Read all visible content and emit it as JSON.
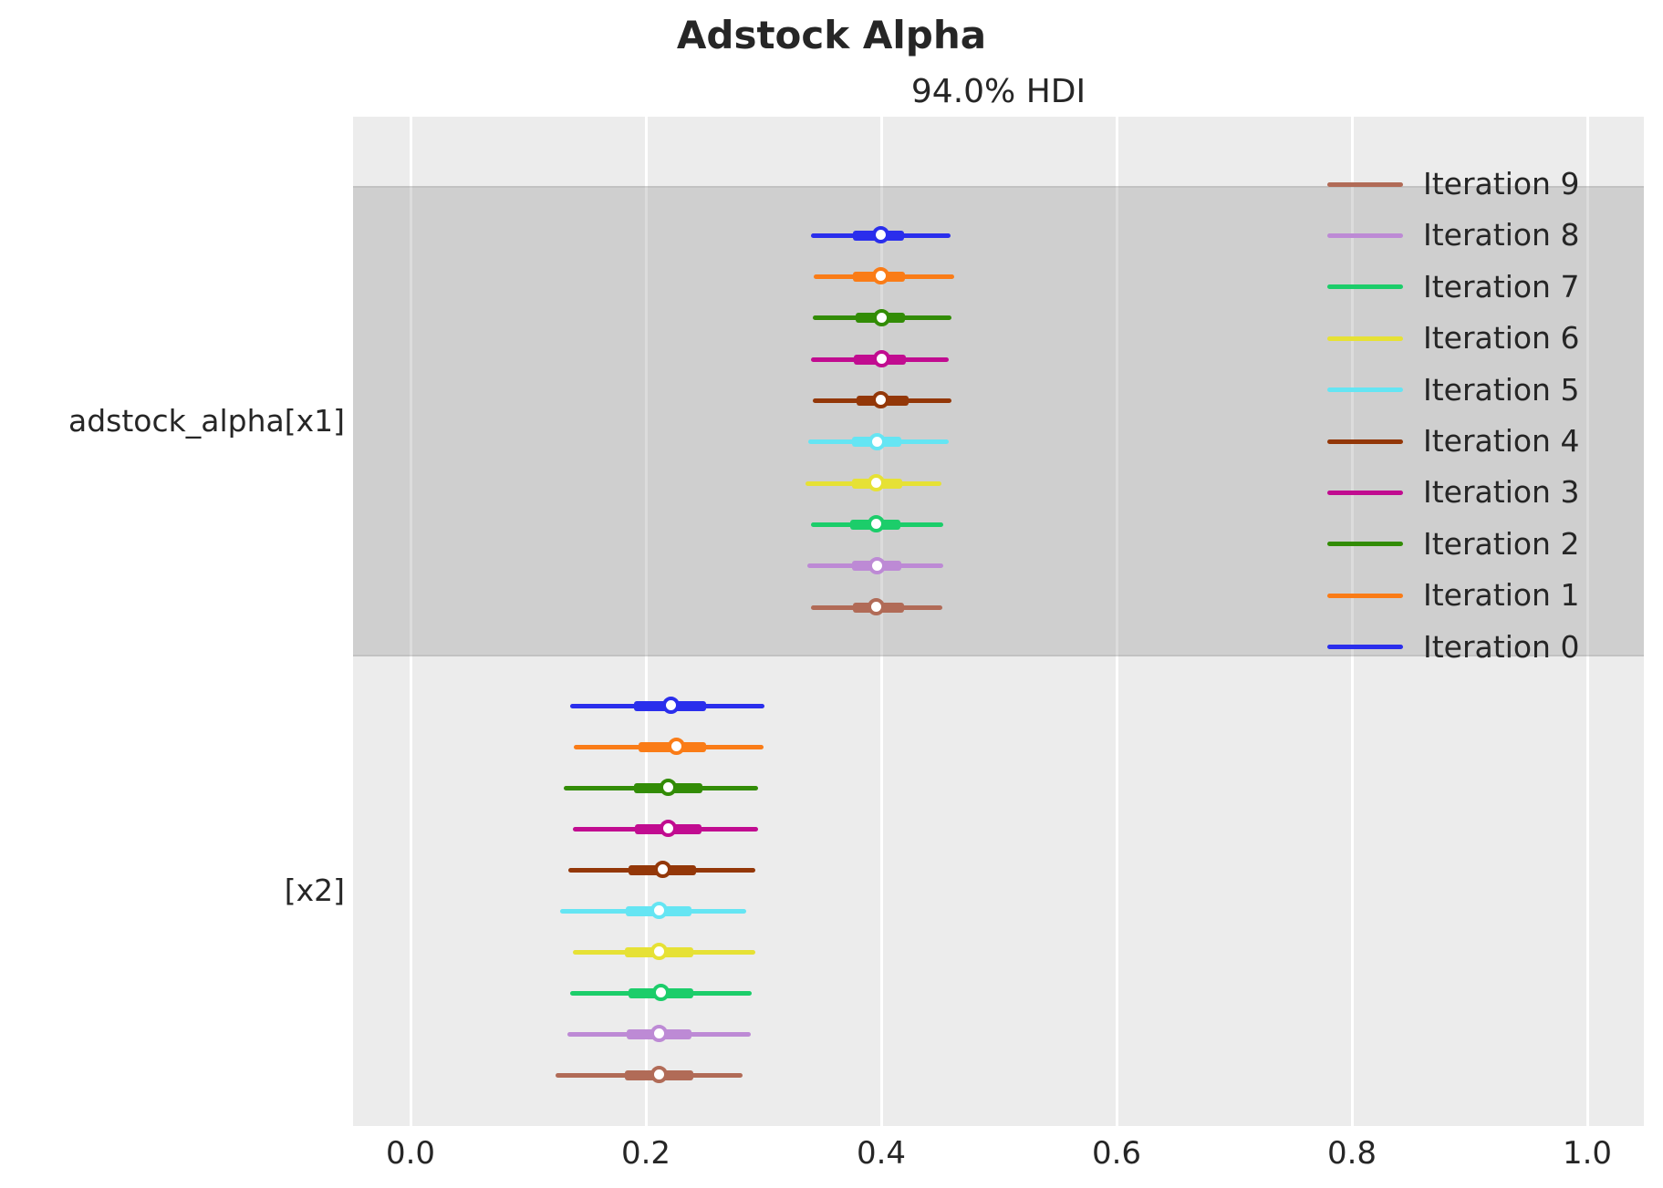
{
  "title": "Adstock Alpha",
  "subtitle": "94.0% HDI",
  "colors": {
    "figure_bg": "#ffffff",
    "plot_bg": "#ececec",
    "band_overlay": "#d2d2d2",
    "grid": "#ffffff",
    "text": "#262626"
  },
  "chart_data": {
    "type": "forest",
    "title": "Adstock Alpha",
    "subtitle": "94.0% HDI",
    "interval_label": "94.0% HDI",
    "xlabel": "",
    "xlim": [
      -0.05,
      1.05
    ],
    "x_ticks": [
      0.0,
      0.2,
      0.4,
      0.6,
      0.8,
      1.0
    ],
    "x_tick_labels": [
      "0.0",
      "0.2",
      "0.4",
      "0.6",
      "0.8",
      "1.0"
    ],
    "grid": true,
    "legend_position": "upper right inside",
    "groups": [
      {
        "label": "adstock_alpha[x1]",
        "shaded": true,
        "rows": [
          {
            "series": "Iteration 0",
            "color": "#2a2eec",
            "hdi": [
              0.34,
              0.459
            ],
            "iqr": [
              0.376,
              0.419
            ],
            "median": 0.4
          },
          {
            "series": "Iteration 1",
            "color": "#fa7c17",
            "hdi": [
              0.343,
              0.462
            ],
            "iqr": [
              0.376,
              0.42
            ],
            "median": 0.4
          },
          {
            "series": "Iteration 2",
            "color": "#328c06",
            "hdi": [
              0.342,
              0.46
            ],
            "iqr": [
              0.378,
              0.42
            ],
            "median": 0.401
          },
          {
            "series": "Iteration 3",
            "color": "#c10c90",
            "hdi": [
              0.34,
              0.457
            ],
            "iqr": [
              0.377,
              0.421
            ],
            "median": 0.401
          },
          {
            "series": "Iteration 4",
            "color": "#933708",
            "hdi": [
              0.342,
              0.46
            ],
            "iqr": [
              0.379,
              0.423
            ],
            "median": 0.4
          },
          {
            "series": "Iteration 5",
            "color": "#65e5f3",
            "hdi": [
              0.338,
              0.457
            ],
            "iqr": [
              0.375,
              0.417
            ],
            "median": 0.397
          },
          {
            "series": "Iteration 6",
            "color": "#e6e135",
            "hdi": [
              0.336,
              0.451
            ],
            "iqr": [
              0.375,
              0.418
            ],
            "median": 0.396
          },
          {
            "series": "Iteration 7",
            "color": "#1ccd6a",
            "hdi": [
              0.34,
              0.453
            ],
            "iqr": [
              0.374,
              0.416
            ],
            "median": 0.396
          },
          {
            "series": "Iteration 8",
            "color": "#bd8ad5",
            "hdi": [
              0.337,
              0.453
            ],
            "iqr": [
              0.375,
              0.417
            ],
            "median": 0.397
          },
          {
            "series": "Iteration 9",
            "color": "#b16b57",
            "hdi": [
              0.34,
              0.452
            ],
            "iqr": [
              0.376,
              0.419
            ],
            "median": 0.396
          }
        ]
      },
      {
        "label": "[x2]",
        "shaded": false,
        "rows": [
          {
            "series": "Iteration 0",
            "color": "#2a2eec",
            "hdi": [
              0.136,
              0.301
            ],
            "iqr": [
              0.19,
              0.251
            ],
            "median": 0.222
          },
          {
            "series": "Iteration 1",
            "color": "#fa7c17",
            "hdi": [
              0.139,
              0.3
            ],
            "iqr": [
              0.194,
              0.251
            ],
            "median": 0.226
          },
          {
            "series": "Iteration 2",
            "color": "#328c06",
            "hdi": [
              0.13,
              0.295
            ],
            "iqr": [
              0.19,
              0.248
            ],
            "median": 0.219
          },
          {
            "series": "Iteration 3",
            "color": "#c10c90",
            "hdi": [
              0.138,
              0.295
            ],
            "iqr": [
              0.191,
              0.247
            ],
            "median": 0.219
          },
          {
            "series": "Iteration 4",
            "color": "#933708",
            "hdi": [
              0.134,
              0.293
            ],
            "iqr": [
              0.185,
              0.243
            ],
            "median": 0.215
          },
          {
            "series": "Iteration 5",
            "color": "#65e5f3",
            "hdi": [
              0.127,
              0.285
            ],
            "iqr": [
              0.183,
              0.239
            ],
            "median": 0.212
          },
          {
            "series": "Iteration 6",
            "color": "#e6e135",
            "hdi": [
              0.138,
              0.293
            ],
            "iqr": [
              0.182,
              0.24
            ],
            "median": 0.212
          },
          {
            "series": "Iteration 7",
            "color": "#1ccd6a",
            "hdi": [
              0.136,
              0.29
            ],
            "iqr": [
              0.185,
              0.24
            ],
            "median": 0.213
          },
          {
            "series": "Iteration 8",
            "color": "#bd8ad5",
            "hdi": [
              0.133,
              0.289
            ],
            "iqr": [
              0.184,
              0.239
            ],
            "median": 0.212
          },
          {
            "series": "Iteration 9",
            "color": "#b16b57",
            "hdi": [
              0.123,
              0.282
            ],
            "iqr": [
              0.182,
              0.24
            ],
            "median": 0.212
          }
        ]
      }
    ],
    "legend": [
      {
        "label": "Iteration 9",
        "color": "#b16b57"
      },
      {
        "label": "Iteration 8",
        "color": "#bd8ad5"
      },
      {
        "label": "Iteration 7",
        "color": "#1ccd6a"
      },
      {
        "label": "Iteration 6",
        "color": "#e6e135"
      },
      {
        "label": "Iteration 5",
        "color": "#65e5f3"
      },
      {
        "label": "Iteration 4",
        "color": "#933708"
      },
      {
        "label": "Iteration 3",
        "color": "#c10c90"
      },
      {
        "label": "Iteration 2",
        "color": "#328c06"
      },
      {
        "label": "Iteration 1",
        "color": "#fa7c17"
      },
      {
        "label": "Iteration 0",
        "color": "#2a2eec"
      }
    ]
  }
}
